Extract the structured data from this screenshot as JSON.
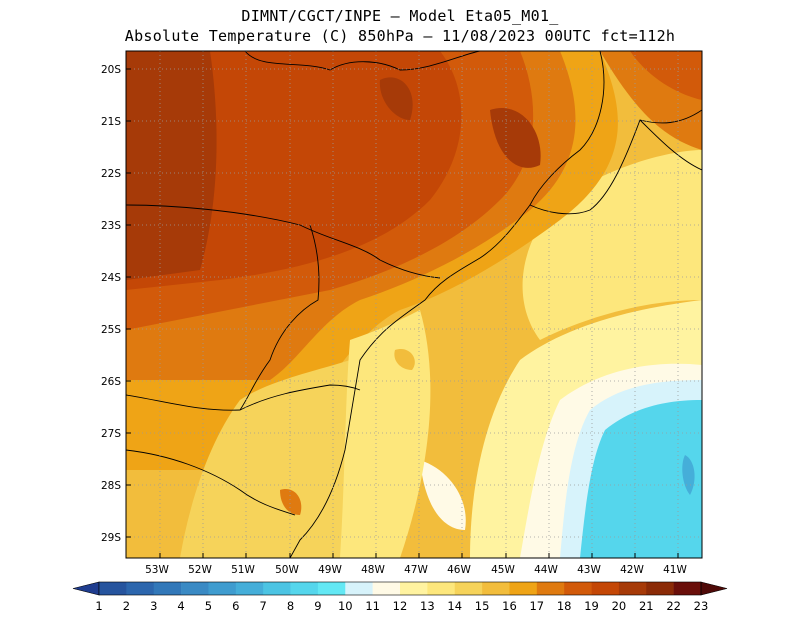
{
  "header": {
    "line1": "DIMNT/CGCT/INPE –  Model Eta05_M01_",
    "line2": "Absolute Temperature (C) 850hPa –  11/08/2023 00UTC fct=112h"
  },
  "map": {
    "lat_labels": [
      "20S",
      "21S",
      "22S",
      "23S",
      "24S",
      "25S",
      "26S",
      "27S",
      "28S",
      "29S"
    ],
    "lon_labels": [
      "53W",
      "52W",
      "51W",
      "50W",
      "49W",
      "48W",
      "47W",
      "46W",
      "45W",
      "44W",
      "43W",
      "42W",
      "41W"
    ]
  },
  "colorbar": {
    "labels": [
      "1",
      "2",
      "3",
      "4",
      "5",
      "6",
      "7",
      "8",
      "9",
      "10",
      "11",
      "12",
      "13",
      "14",
      "15",
      "16",
      "17",
      "18",
      "19",
      "20",
      "21",
      "22",
      "23"
    ],
    "colors": [
      "#1f3d8f",
      "#26549e",
      "#2c66ad",
      "#3278b9",
      "#3a8ac4",
      "#3f9ccf",
      "#45aed9",
      "#4cc4e3",
      "#55d6ec",
      "#63e8f4",
      "#d7f3fb",
      "#fffae6",
      "#fff3a0",
      "#fde77c",
      "#f6d35a",
      "#f2bd3c",
      "#efa416",
      "#df7a10",
      "#d25a0a",
      "#c44706",
      "#a63a08",
      "#8b2b07",
      "#6a0f0a",
      "#4f0a08"
    ]
  }
}
